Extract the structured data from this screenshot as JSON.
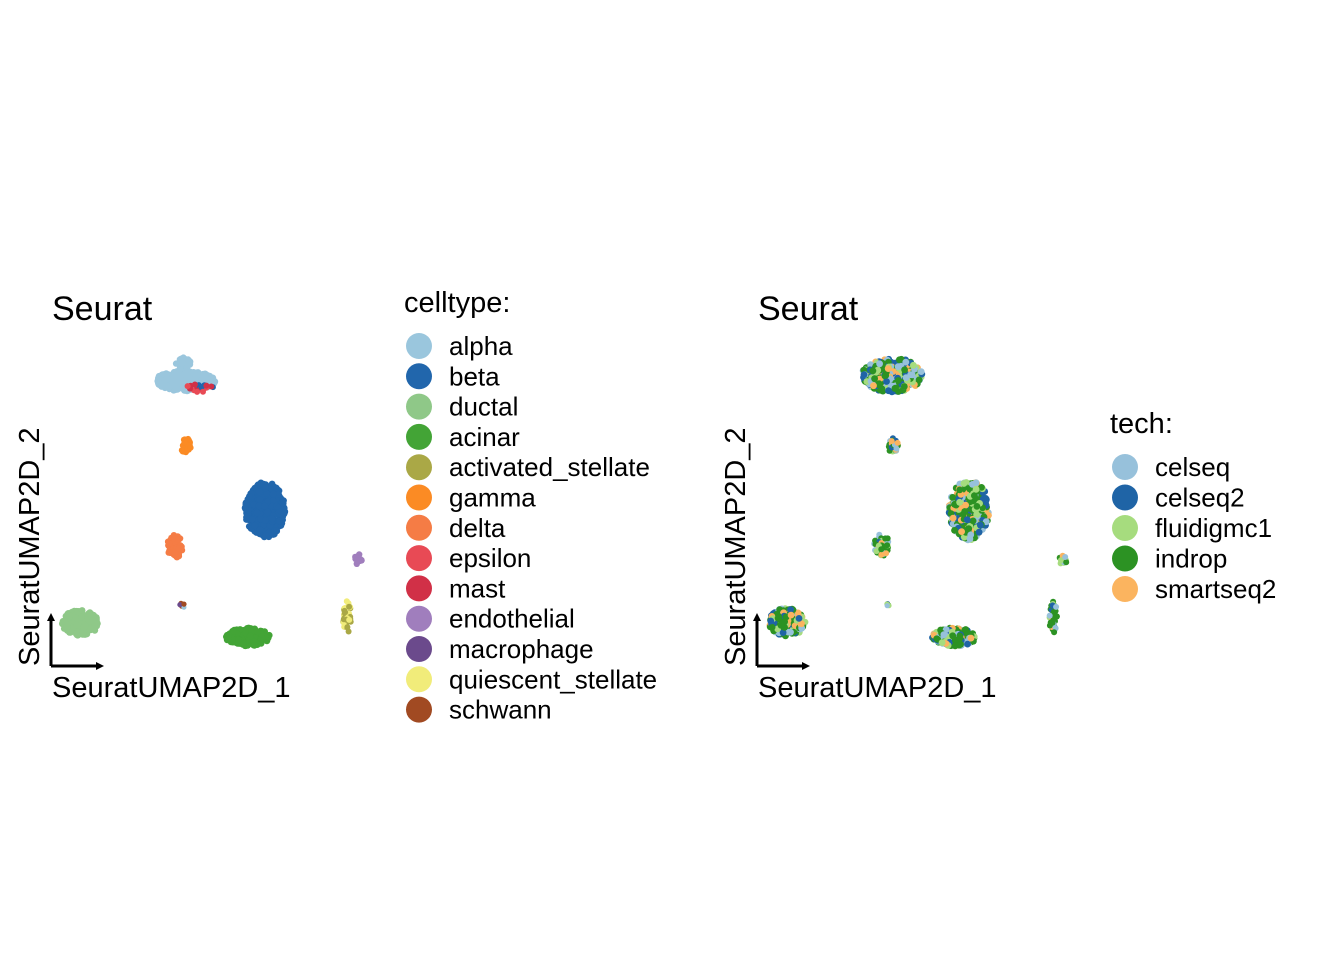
{
  "chart_data": [
    {
      "type": "scatter",
      "title": "Seurat",
      "xlabel": "SeuratUMAP2D_1",
      "ylabel": "SeuratUMAP2D_2",
      "grid": false,
      "legend": {
        "title": "celltype:",
        "placement": "right",
        "entries": [
          {
            "label": "alpha",
            "color": "#9ac6dd"
          },
          {
            "label": "beta",
            "color": "#2166ac"
          },
          {
            "label": "ductal",
            "color": "#8fc888"
          },
          {
            "label": "acinar",
            "color": "#43a436"
          },
          {
            "label": "activated_stellate",
            "color": "#aaa846"
          },
          {
            "label": "gamma",
            "color": "#fb8b24"
          },
          {
            "label": "delta",
            "color": "#f57c45"
          },
          {
            "label": "epsilon",
            "color": "#e84a55"
          },
          {
            "label": "mast",
            "color": "#d13047"
          },
          {
            "label": "endothelial",
            "color": "#a07ebd"
          },
          {
            "label": "macrophage",
            "color": "#6b4a8c"
          },
          {
            "label": "quiescent_stellate",
            "color": "#f1ec7a"
          },
          {
            "label": "schwann",
            "color": "#a14a22"
          }
        ]
      }
    },
    {
      "type": "scatter",
      "title": "Seurat",
      "xlabel": "SeuratUMAP2D_1",
      "ylabel": "SeuratUMAP2D_2",
      "grid": false,
      "legend": {
        "title": "tech:",
        "placement": "right",
        "entries": [
          {
            "label": "celseq",
            "color": "#97c1db"
          },
          {
            "label": "celseq2",
            "color": "#1f64a6"
          },
          {
            "label": "fluidigmc1",
            "color": "#a6dc7e"
          },
          {
            "label": "indrop",
            "color": "#2c9223"
          },
          {
            "label": "smartseq2",
            "color": "#fbb45f"
          }
        ]
      }
    }
  ]
}
